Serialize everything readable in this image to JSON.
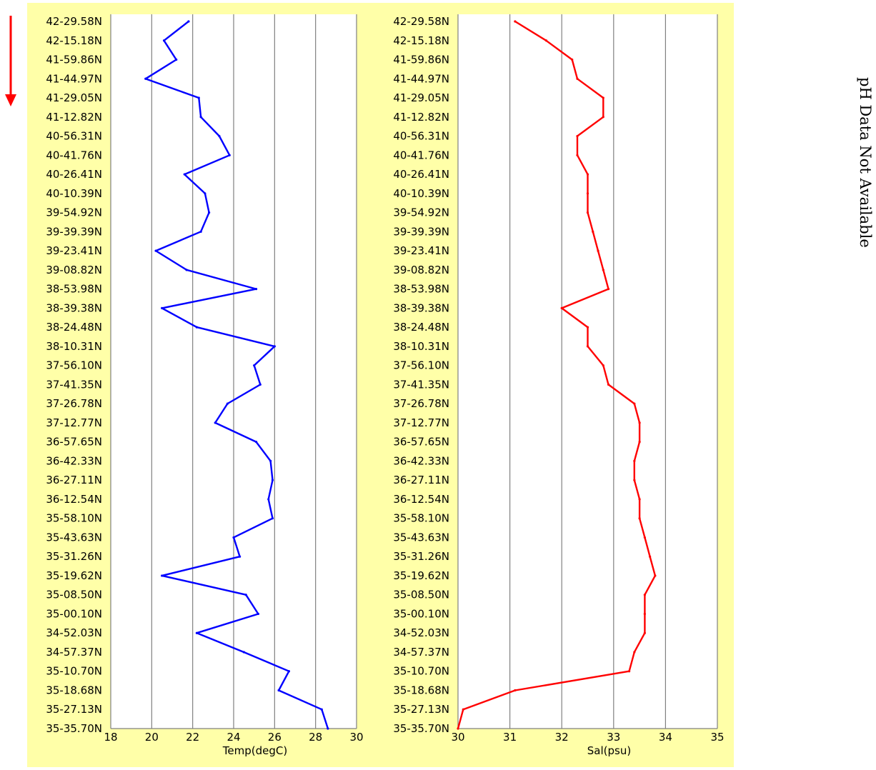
{
  "side_note": "pH Data Not Available",
  "arrow_color": "#ff0000",
  "panel_bg": "#ffffa8",
  "chart_data": [
    {
      "type": "line",
      "orientation": "profile",
      "xlabel": "Temp(degC)",
      "xlim": [
        18,
        30
      ],
      "xticks": [
        18,
        20,
        22,
        24,
        26,
        28,
        30
      ],
      "grid": true,
      "color": "#0000ff",
      "categories": [
        "42-29.58N",
        "42-15.18N",
        "41-59.86N",
        "41-44.97N",
        "41-29.05N",
        "41-12.82N",
        "40-56.31N",
        "40-41.76N",
        "40-26.41N",
        "40-10.39N",
        "39-54.92N",
        "39-39.39N",
        "39-23.41N",
        "39-08.82N",
        "38-53.98N",
        "38-39.38N",
        "38-24.48N",
        "38-10.31N",
        "37-56.10N",
        "37-41.35N",
        "37-26.78N",
        "37-12.77N",
        "36-57.65N",
        "36-42.33N",
        "36-27.11N",
        "36-12.54N",
        "35-58.10N",
        "35-43.63N",
        "35-31.26N",
        "35-19.62N",
        "35-08.50N",
        "35-00.10N",
        "34-52.03N",
        "34-57.37N",
        "35-10.70N",
        "35-18.68N",
        "35-27.13N",
        "35-35.70N"
      ],
      "values": [
        21.8,
        20.6,
        21.2,
        19.7,
        22.3,
        22.4,
        23.3,
        23.8,
        21.6,
        22.6,
        22.8,
        22.4,
        20.2,
        21.7,
        25.1,
        20.5,
        22.2,
        26.0,
        25.0,
        25.3,
        23.7,
        23.1,
        25.1,
        25.8,
        25.9,
        25.7,
        25.9,
        24.0,
        24.3,
        20.5,
        24.6,
        25.2,
        22.2,
        24.5,
        26.7,
        26.2,
        28.3,
        28.6
      ]
    },
    {
      "type": "line",
      "orientation": "profile",
      "xlabel": "Sal(psu)",
      "xlim": [
        30,
        35
      ],
      "xticks": [
        30,
        31,
        32,
        33,
        34,
        35
      ],
      "grid": true,
      "color": "#ff0000",
      "categories": [
        "42-29.58N",
        "42-15.18N",
        "41-59.86N",
        "41-44.97N",
        "41-29.05N",
        "41-12.82N",
        "40-56.31N",
        "40-41.76N",
        "40-26.41N",
        "40-10.39N",
        "39-54.92N",
        "39-39.39N",
        "39-23.41N",
        "39-08.82N",
        "38-53.98N",
        "38-39.38N",
        "38-24.48N",
        "38-10.31N",
        "37-56.10N",
        "37-41.35N",
        "37-26.78N",
        "37-12.77N",
        "36-57.65N",
        "36-42.33N",
        "36-27.11N",
        "36-12.54N",
        "35-58.10N",
        "35-43.63N",
        "35-31.26N",
        "35-19.62N",
        "35-08.50N",
        "35-00.10N",
        "34-52.03N",
        "34-57.37N",
        "35-10.70N",
        "35-18.68N",
        "35-27.13N",
        "35-35.70N"
      ],
      "values": [
        31.1,
        31.7,
        32.2,
        32.3,
        32.8,
        32.8,
        32.3,
        32.3,
        32.5,
        32.5,
        32.5,
        32.6,
        32.7,
        32.8,
        32.9,
        32.0,
        32.5,
        32.5,
        32.8,
        32.9,
        33.4,
        33.5,
        33.5,
        33.4,
        33.4,
        33.5,
        33.5,
        33.6,
        33.7,
        33.8,
        33.6,
        33.6,
        33.6,
        33.4,
        33.3,
        31.1,
        30.1,
        30.0
      ]
    }
  ]
}
